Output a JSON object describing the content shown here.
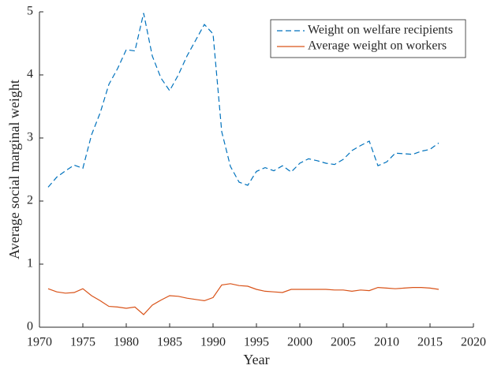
{
  "chart_data": {
    "type": "line",
    "xlabel": "Year",
    "ylabel": "Average social marginal weight",
    "x": [
      1971,
      1972,
      1973,
      1974,
      1975,
      1976,
      1977,
      1978,
      1979,
      1980,
      1981,
      1982,
      1983,
      1984,
      1985,
      1986,
      1987,
      1988,
      1989,
      1990,
      1991,
      1992,
      1993,
      1994,
      1995,
      1996,
      1997,
      1998,
      1999,
      2000,
      2001,
      2002,
      2003,
      2004,
      2005,
      2006,
      2007,
      2008,
      2009,
      2010,
      2011,
      2012,
      2013,
      2014,
      2015,
      2016
    ],
    "series": [
      {
        "name": "Weight on welfare recipients",
        "color": "#0072bd",
        "line_style": "dashed",
        "values": [
          2.22,
          2.38,
          2.48,
          2.57,
          2.52,
          3.05,
          3.4,
          3.85,
          4.1,
          4.4,
          4.38,
          4.98,
          4.3,
          3.95,
          3.75,
          4.0,
          4.3,
          4.55,
          4.8,
          4.65,
          3.1,
          2.55,
          2.3,
          2.25,
          2.47,
          2.53,
          2.48,
          2.56,
          2.46,
          2.6,
          2.67,
          2.64,
          2.6,
          2.58,
          2.66,
          2.8,
          2.88,
          2.95,
          2.56,
          2.62,
          2.76,
          2.75,
          2.74,
          2.79,
          2.82,
          2.92
        ]
      },
      {
        "name": "Average weight on workers",
        "color": "#d95319",
        "line_style": "solid",
        "values": [
          0.61,
          0.56,
          0.54,
          0.55,
          0.61,
          0.5,
          0.42,
          0.33,
          0.32,
          0.3,
          0.32,
          0.2,
          0.35,
          0.43,
          0.5,
          0.49,
          0.46,
          0.44,
          0.42,
          0.47,
          0.67,
          0.69,
          0.66,
          0.65,
          0.6,
          0.57,
          0.56,
          0.55,
          0.6,
          0.6,
          0.6,
          0.6,
          0.6,
          0.59,
          0.59,
          0.57,
          0.59,
          0.58,
          0.63,
          0.62,
          0.61,
          0.62,
          0.63,
          0.63,
          0.62,
          0.6
        ]
      }
    ],
    "xlim": [
      1970,
      2020
    ],
    "xticks": [
      1970,
      1975,
      1980,
      1985,
      1990,
      1995,
      2000,
      2005,
      2010,
      2015,
      2020
    ],
    "ylim": [
      0,
      5
    ],
    "yticks": [
      0,
      1,
      2,
      3,
      4,
      5
    ],
    "grid": false,
    "legend": "upper right"
  }
}
